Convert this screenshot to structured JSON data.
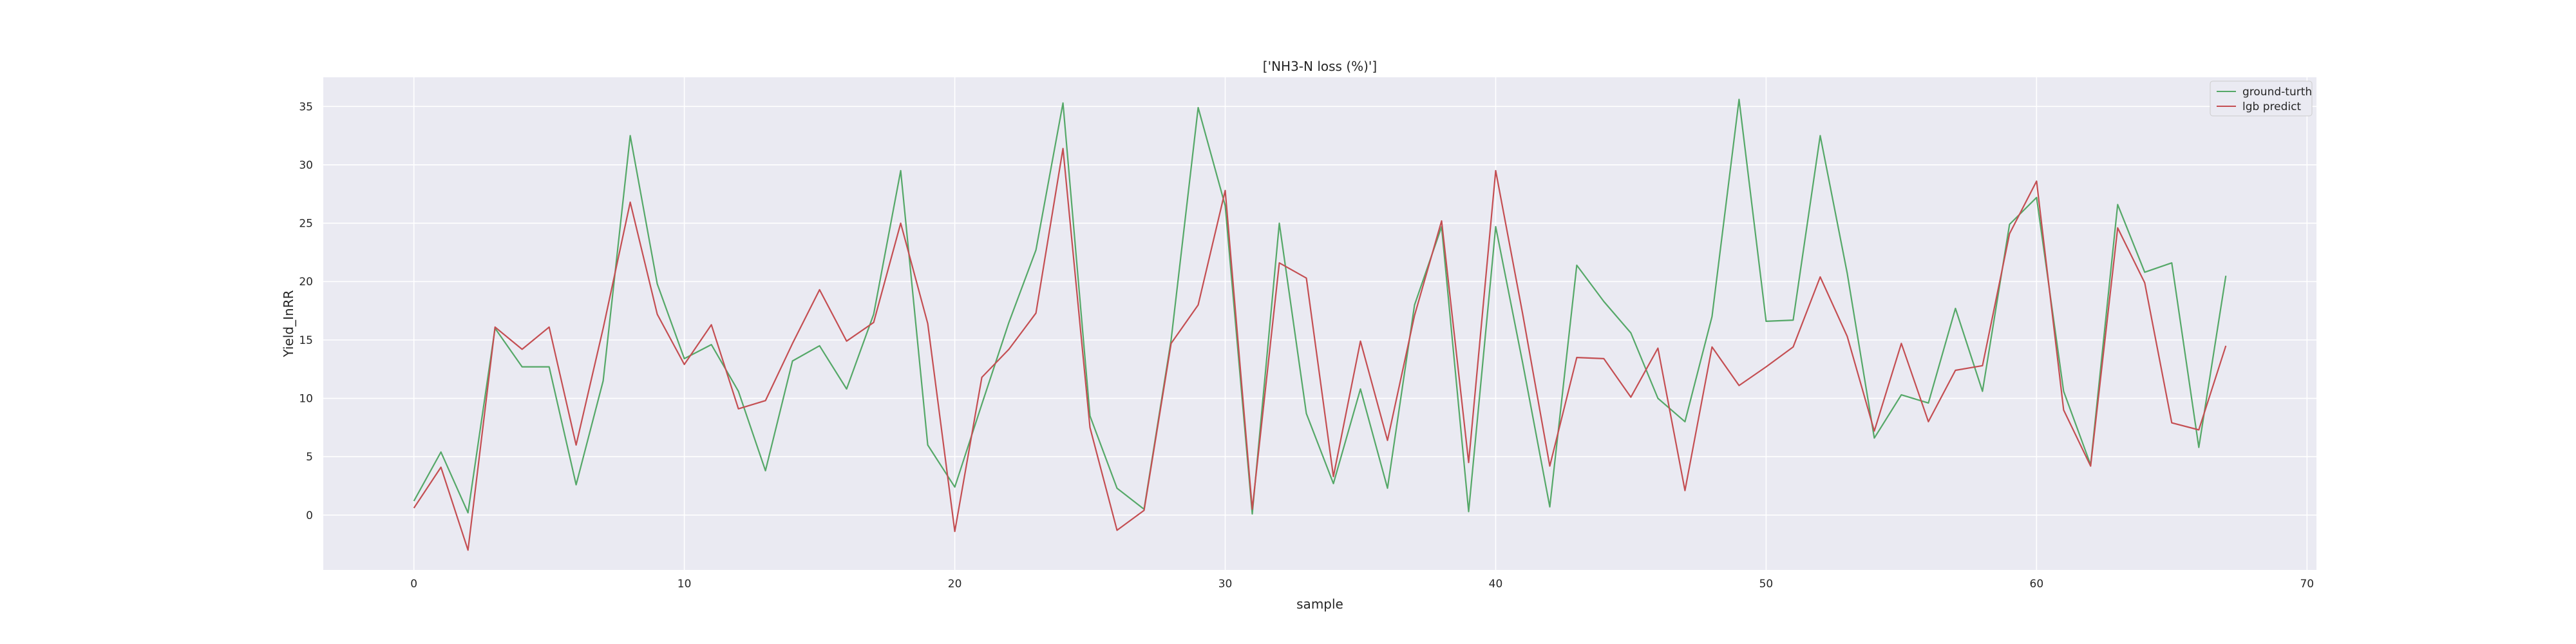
{
  "chart_data": {
    "type": "line",
    "title": "['NH3-N loss (%)']",
    "xlabel": "sample",
    "ylabel": "Yield_InRR",
    "xlim": [
      -3.35,
      70.35
    ],
    "ylim": [
      -4.7,
      37.5
    ],
    "xticks": [
      0,
      10,
      20,
      30,
      40,
      50,
      60,
      70
    ],
    "yticks": [
      0,
      5,
      10,
      15,
      20,
      25,
      30,
      35
    ],
    "grid": true,
    "legend_position": "top-right",
    "x": [
      0,
      1,
      2,
      3,
      4,
      5,
      6,
      7,
      8,
      9,
      10,
      11,
      12,
      13,
      14,
      15,
      16,
      17,
      18,
      19,
      20,
      21,
      22,
      23,
      24,
      25,
      26,
      27,
      28,
      29,
      30,
      31,
      32,
      33,
      34,
      35,
      36,
      37,
      38,
      39,
      40,
      41,
      42,
      43,
      44,
      45,
      46,
      47,
      48,
      49,
      50,
      51,
      52,
      53,
      54,
      55,
      56,
      57,
      58,
      59,
      60,
      61,
      62,
      63,
      64,
      65,
      66,
      67
    ],
    "series": [
      {
        "name": "ground-turth",
        "color": "#55a868",
        "values": [
          1.2,
          5.4,
          0.2,
          16.0,
          12.7,
          12.7,
          2.6,
          11.5,
          32.5,
          19.8,
          13.4,
          14.6,
          10.6,
          3.8,
          13.2,
          14.5,
          10.8,
          17.2,
          29.5,
          6.0,
          2.4,
          9.5,
          16.5,
          22.7,
          35.3,
          8.5,
          2.3,
          0.5,
          15.0,
          34.9,
          26.5,
          0.1,
          25.0,
          8.7,
          2.7,
          10.8,
          2.3,
          18.0,
          24.7,
          0.3,
          24.7,
          13.0,
          0.7,
          21.4,
          18.3,
          15.6,
          10.0,
          8.0,
          17.0,
          35.6,
          16.6,
          16.7,
          32.5,
          20.7,
          6.6,
          10.3,
          9.6,
          17.7,
          10.6,
          24.9,
          27.2,
          10.6,
          4.3,
          26.6,
          20.8,
          21.6,
          5.8,
          20.5
        ]
      },
      {
        "name": "lgb predict",
        "color": "#c44e52",
        "values": [
          0.6,
          4.1,
          -3.0,
          16.1,
          14.2,
          16.1,
          6.0,
          16.0,
          26.8,
          17.2,
          12.9,
          16.3,
          9.1,
          9.8,
          14.7,
          19.3,
          14.9,
          16.5,
          25.0,
          16.4,
          -1.4,
          11.8,
          14.2,
          17.3,
          31.4,
          7.5,
          -1.3,
          0.4,
          14.7,
          18.0,
          27.8,
          0.5,
          21.6,
          20.3,
          3.3,
          14.9,
          6.4,
          17.1,
          25.2,
          4.5,
          29.5,
          17.2,
          4.2,
          13.5,
          13.4,
          10.1,
          14.3,
          2.1,
          14.4,
          11.1,
          12.7,
          14.4,
          20.4,
          15.3,
          7.2,
          14.7,
          8.0,
          12.4,
          12.8,
          24.1,
          28.6,
          9.0,
          4.2,
          24.6,
          19.9,
          7.9,
          7.3,
          14.5
        ]
      }
    ]
  }
}
